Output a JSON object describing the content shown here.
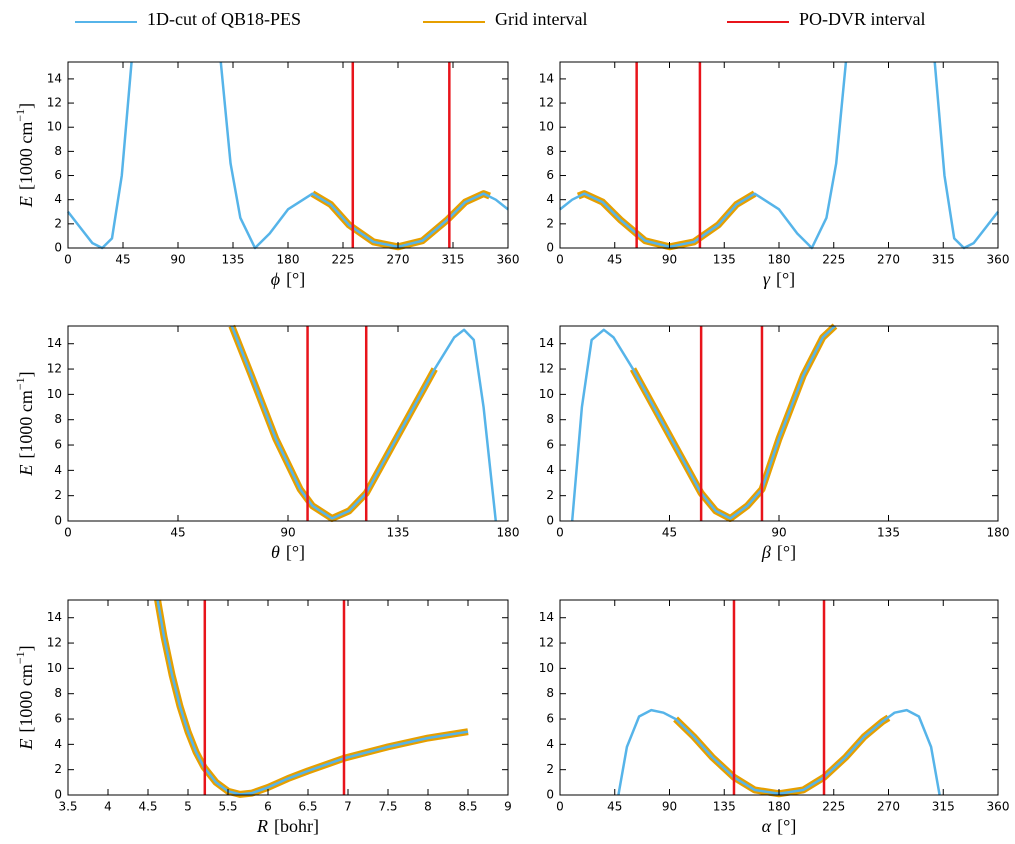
{
  "chart_data": [
    {
      "type": "line",
      "xlabel": "ϕ",
      "xunit": "[°]",
      "ylabel": [
        "E",
        "[1000 cm",
        "−1",
        "]"
      ],
      "xlim": [
        0,
        360
      ],
      "xticks": [
        0,
        45,
        90,
        135,
        180,
        225,
        270,
        315,
        360
      ],
      "ylim": [
        0,
        15.4
      ],
      "yticks": [
        0,
        2,
        4,
        6,
        8,
        10,
        12,
        14
      ],
      "series": [
        {
          "name": "1D-cut of QB18-PES",
          "color": "#56b4e9",
          "linewidth": 2.5,
          "x": [
            0,
            10,
            20,
            28,
            36,
            44,
            52,
            88,
            125,
            133,
            141,
            153,
            165,
            180,
            200,
            215,
            230,
            250,
            270,
            290,
            310,
            325,
            340,
            350,
            360
          ],
          "values": [
            3,
            1.7,
            0.4,
            0,
            0.8,
            6,
            15.4,
            null,
            15.4,
            7,
            2.5,
            0,
            1.2,
            3.2,
            4.5,
            3.6,
            1.9,
            0.5,
            0.1,
            0.6,
            2.3,
            3.8,
            4.5,
            4,
            3.2
          ]
        },
        {
          "name": "Grid interval",
          "color": "#e69f00",
          "linewidth": 7,
          "x": [
            200,
            215,
            230,
            250,
            270,
            290,
            310,
            325,
            340,
            345
          ],
          "values": [
            4.5,
            3.6,
            1.9,
            0.5,
            0.1,
            0.6,
            2.3,
            3.8,
            4.5,
            4.3
          ]
        },
        {
          "name": "PO-DVR interval",
          "color": "#e8141b",
          "linewidth": 2.5,
          "vlines": [
            233,
            312
          ]
        }
      ]
    },
    {
      "type": "line",
      "xlabel": "γ",
      "xunit": "[°]",
      "xlim": [
        0,
        360
      ],
      "xticks": [
        0,
        45,
        90,
        135,
        180,
        225,
        270,
        315,
        360
      ],
      "ylim": [
        0,
        15.4
      ],
      "yticks": [
        0,
        2,
        4,
        6,
        8,
        10,
        12,
        14
      ],
      "series": [
        {
          "name": "1D-cut of QB18-PES",
          "color": "#56b4e9",
          "linewidth": 2.5,
          "x": [
            0,
            10,
            20,
            35,
            50,
            70,
            90,
            110,
            130,
            145,
            160,
            180,
            195,
            207,
            219,
            227,
            235,
            270,
            308,
            316,
            324,
            332,
            340,
            350,
            360
          ],
          "values": [
            3.2,
            4,
            4.5,
            3.8,
            2.3,
            0.6,
            0.1,
            0.5,
            1.9,
            3.6,
            4.5,
            3.2,
            1.2,
            0,
            2.5,
            7,
            15.4,
            null,
            15.4,
            6,
            0.8,
            0,
            0.4,
            1.7,
            3
          ]
        },
        {
          "name": "Grid interval",
          "color": "#e69f00",
          "linewidth": 7,
          "x": [
            15,
            20,
            35,
            50,
            70,
            90,
            110,
            130,
            145,
            160
          ],
          "values": [
            4.3,
            4.5,
            3.8,
            2.3,
            0.6,
            0.1,
            0.5,
            1.9,
            3.6,
            4.5
          ]
        },
        {
          "name": "PO-DVR interval",
          "color": "#e8141b",
          "linewidth": 2.5,
          "vlines": [
            63,
            115
          ]
        }
      ]
    },
    {
      "type": "line",
      "xlabel": "θ",
      "xunit": "[°]",
      "ylabel": [
        "E",
        "[1000 cm",
        "−1",
        "]"
      ],
      "xlim": [
        0,
        180
      ],
      "xticks": [
        0,
        45,
        90,
        135,
        180
      ],
      "ylim": [
        0,
        15.4
      ],
      "yticks": [
        0,
        2,
        4,
        6,
        8,
        10,
        12,
        14
      ],
      "series": [
        {
          "name": "1D-cut of QB18-PES",
          "color": "#56b4e9",
          "linewidth": 2.5,
          "x": [
            67,
            75,
            85,
            95,
            100,
            108,
            115,
            122,
            130,
            140,
            150,
            158,
            162,
            166,
            170,
            175
          ],
          "values": [
            15.4,
            11.5,
            6.5,
            2.5,
            1.2,
            0.2,
            0.8,
            2.2,
            5,
            8.5,
            12,
            14.5,
            15.1,
            14.3,
            9,
            0
          ]
        },
        {
          "name": "Grid interval",
          "color": "#e69f00",
          "linewidth": 7,
          "x": [
            67,
            75,
            85,
            95,
            100,
            108,
            115,
            122,
            130,
            140,
            150
          ],
          "values": [
            15.4,
            11.5,
            6.5,
            2.5,
            1.2,
            0.2,
            0.8,
            2.2,
            5,
            8.5,
            12
          ]
        },
        {
          "name": "PO-DVR interval",
          "color": "#e8141b",
          "linewidth": 2.5,
          "vlines": [
            98,
            122
          ]
        }
      ]
    },
    {
      "type": "line",
      "xlabel": "β",
      "xunit": "[°]",
      "xlim": [
        0,
        180
      ],
      "xticks": [
        0,
        45,
        90,
        135,
        180
      ],
      "ylim": [
        0,
        15.4
      ],
      "yticks": [
        0,
        2,
        4,
        6,
        8,
        10,
        12,
        14
      ],
      "series": [
        {
          "name": "1D-cut of QB18-PES",
          "color": "#56b4e9",
          "linewidth": 2.5,
          "x": [
            5,
            9,
            13,
            18,
            22,
            30,
            40,
            50,
            58,
            64,
            70,
            77,
            83,
            90,
            100,
            108,
            113
          ],
          "values": [
            0,
            9,
            14.3,
            15.1,
            14.5,
            12,
            8.5,
            5,
            2.2,
            0.8,
            0.2,
            1.2,
            2.5,
            6.5,
            11.5,
            14.5,
            15.4
          ]
        },
        {
          "name": "Grid interval",
          "color": "#e69f00",
          "linewidth": 7,
          "x": [
            30,
            40,
            50,
            58,
            64,
            70,
            77,
            83,
            90,
            100,
            108,
            113
          ],
          "values": [
            12,
            8.5,
            5,
            2.2,
            0.8,
            0.2,
            1.2,
            2.5,
            6.5,
            11.5,
            14.5,
            15.4
          ]
        },
        {
          "name": "PO-DVR interval",
          "color": "#e8141b",
          "linewidth": 2.5,
          "vlines": [
            58,
            83
          ]
        }
      ]
    },
    {
      "type": "line",
      "xlabel": "R",
      "xunit": "[bohr]",
      "ylabel": [
        "E",
        "[1000 cm",
        "−1",
        "]"
      ],
      "xlim": [
        3.5,
        9
      ],
      "xticks": [
        3.5,
        4,
        4.5,
        5,
        5.5,
        6,
        6.5,
        7,
        7.5,
        8,
        8.5,
        9
      ],
      "ylim": [
        0,
        15.4
      ],
      "yticks": [
        0,
        2,
        4,
        6,
        8,
        10,
        12,
        14
      ],
      "series": [
        {
          "name": "1D-cut of QB18-PES",
          "color": "#56b4e9",
          "linewidth": 2.5,
          "x": [
            4.62,
            4.7,
            4.8,
            4.9,
            5.0,
            5.1,
            5.2,
            5.35,
            5.5,
            5.65,
            5.8,
            6.0,
            6.25,
            6.5,
            6.95,
            7.5,
            8.0,
            8.5
          ],
          "values": [
            15.4,
            12.5,
            9.5,
            7,
            5,
            3.4,
            2.2,
            1,
            0.3,
            0.05,
            0.15,
            0.6,
            1.3,
            1.9,
            2.9,
            3.8,
            4.5,
            5.0
          ]
        },
        {
          "name": "Grid interval",
          "color": "#e69f00",
          "linewidth": 7,
          "x": [
            4.62,
            4.7,
            4.8,
            4.9,
            5.0,
            5.1,
            5.2,
            5.35,
            5.5,
            5.65,
            5.8,
            6.0,
            6.25,
            6.5,
            6.95,
            7.5,
            8.0,
            8.5
          ],
          "values": [
            15.4,
            12.5,
            9.5,
            7,
            5,
            3.4,
            2.2,
            1,
            0.3,
            0.05,
            0.15,
            0.6,
            1.3,
            1.9,
            2.9,
            3.8,
            4.5,
            5.0
          ]
        },
        {
          "name": "PO-DVR interval",
          "color": "#e8141b",
          "linewidth": 2.5,
          "vlines": [
            5.21,
            6.95
          ]
        }
      ]
    },
    {
      "type": "line",
      "xlabel": "α",
      "xunit": "[°]",
      "xlim": [
        0,
        360
      ],
      "xticks": [
        0,
        45,
        90,
        135,
        180,
        225,
        270,
        315,
        360
      ],
      "ylim": [
        0,
        15.4
      ],
      "yticks": [
        0,
        2,
        4,
        6,
        8,
        10,
        12,
        14
      ],
      "series": [
        {
          "name": "1D-cut of QB18-PES",
          "color": "#56b4e9",
          "linewidth": 2.5,
          "x": [
            48,
            55,
            65,
            75,
            85,
            95,
            110,
            125,
            143,
            160,
            180,
            200,
            217,
            235,
            250,
            265,
            275,
            285,
            295,
            305,
            312
          ],
          "values": [
            0,
            3.8,
            6.2,
            6.7,
            6.5,
            6,
            4.6,
            3,
            1.4,
            0.4,
            0.1,
            0.4,
            1.4,
            3,
            4.6,
            5.8,
            6.5,
            6.7,
            6.2,
            3.8,
            0
          ]
        },
        {
          "name": "Grid interval",
          "color": "#e69f00",
          "linewidth": 7,
          "x": [
            95,
            110,
            125,
            143,
            160,
            180,
            200,
            217,
            235,
            250,
            265,
            270
          ],
          "values": [
            6,
            4.6,
            3,
            1.4,
            0.4,
            0.1,
            0.4,
            1.4,
            3,
            4.6,
            5.8,
            6.1
          ]
        },
        {
          "name": "PO-DVR interval",
          "color": "#e8141b",
          "linewidth": 2.5,
          "vlines": [
            143,
            217
          ]
        }
      ]
    }
  ]
}
